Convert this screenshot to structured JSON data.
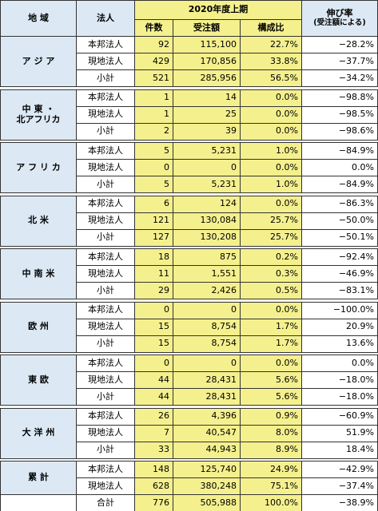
{
  "header": {
    "region": "地 域",
    "corp": "法人",
    "period": "2020年度上期",
    "count": "件数",
    "amount": "受注額",
    "share": "構成比",
    "growth": "伸び率",
    "growth_note": "(受注額による)"
  },
  "groups": [
    {
      "region": [
        "ア ジ ア"
      ],
      "rows": [
        [
          "本邦法人",
          "92",
          "115,100",
          "22.7%",
          "−28.2%"
        ],
        [
          "現地法人",
          "429",
          "170,856",
          "33.8%",
          "−37.7%"
        ],
        [
          "小計",
          "521",
          "285,956",
          "56.5%",
          "−34.2%"
        ]
      ]
    },
    {
      "region": [
        "中 東 ・",
        "北アフリカ"
      ],
      "rows": [
        [
          "本邦法人",
          "1",
          "14",
          "0.0%",
          "−98.8%"
        ],
        [
          "現地法人",
          "1",
          "25",
          "0.0%",
          "−98.5%"
        ],
        [
          "小計",
          "2",
          "39",
          "0.0%",
          "−98.6%"
        ]
      ]
    },
    {
      "region": [
        "ア フ リ カ"
      ],
      "rows": [
        [
          "本邦法人",
          "5",
          "5,231",
          "1.0%",
          "−84.9%"
        ],
        [
          "現地法人",
          "0",
          "0",
          "0.0%",
          "0.0%"
        ],
        [
          "小計",
          "5",
          "5,231",
          "1.0%",
          "−84.9%"
        ]
      ]
    },
    {
      "region": [
        "北 米"
      ],
      "rows": [
        [
          "本邦法人",
          "6",
          "124",
          "0.0%",
          "−86.3%"
        ],
        [
          "現地法人",
          "121",
          "130,084",
          "25.7%",
          "−50.0%"
        ],
        [
          "小計",
          "127",
          "130,208",
          "25.7%",
          "−50.1%"
        ]
      ]
    },
    {
      "region": [
        "中 南 米"
      ],
      "rows": [
        [
          "本邦法人",
          "18",
          "875",
          "0.2%",
          "−92.4%"
        ],
        [
          "現地法人",
          "11",
          "1,551",
          "0.3%",
          "−46.9%"
        ],
        [
          "小計",
          "29",
          "2,426",
          "0.5%",
          "−83.1%"
        ]
      ]
    },
    {
      "region": [
        "欧 州"
      ],
      "rows": [
        [
          "本邦法人",
          "0",
          "0",
          "0.0%",
          "−100.0%"
        ],
        [
          "現地法人",
          "15",
          "8,754",
          "1.7%",
          "20.9%"
        ],
        [
          "小計",
          "15",
          "8,754",
          "1.7%",
          "13.6%"
        ]
      ]
    },
    {
      "region": [
        "東 欧"
      ],
      "rows": [
        [
          "本邦法人",
          "0",
          "0",
          "0.0%",
          "0.0%"
        ],
        [
          "現地法人",
          "44",
          "28,431",
          "5.6%",
          "−18.0%"
        ],
        [
          "小計",
          "44",
          "28,431",
          "5.6%",
          "−18.0%"
        ]
      ]
    },
    {
      "region": [
        "大 洋 州"
      ],
      "rows": [
        [
          "本邦法人",
          "26",
          "4,396",
          "0.9%",
          "−60.9%"
        ],
        [
          "現地法人",
          "7",
          "40,547",
          "8.0%",
          "51.9%"
        ],
        [
          "小計",
          "33",
          "44,943",
          "8.9%",
          "18.4%"
        ]
      ]
    },
    {
      "region": [
        "累 計"
      ],
      "rows": [
        [
          "本邦法人",
          "148",
          "125,740",
          "24.9%",
          "−42.9%"
        ],
        [
          "現地法人",
          "628",
          "380,248",
          "75.1%",
          "−37.4%"
        ]
      ]
    }
  ],
  "total": [
    "合計",
    "776",
    "505,988",
    "100.0%",
    "−38.9%"
  ]
}
